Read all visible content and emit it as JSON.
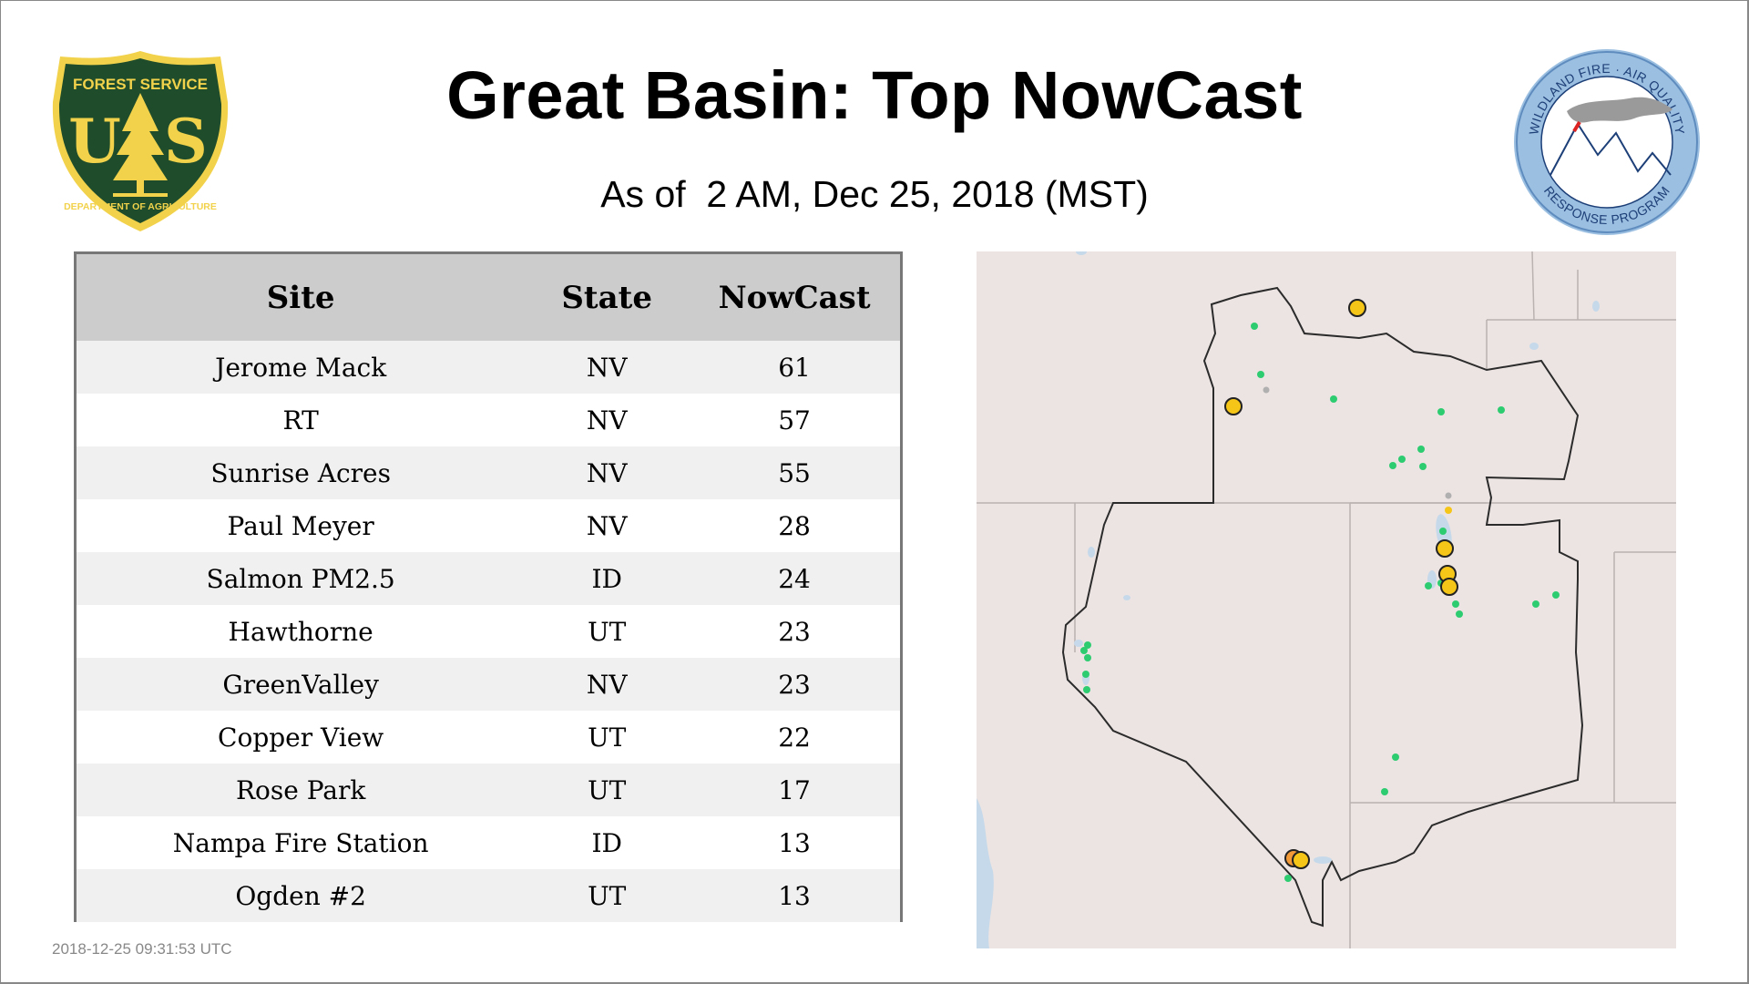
{
  "header": {
    "title": "Great Basin: Top NowCast",
    "subtitle": "As of  2 AM, Dec 25, 2018 (MST)"
  },
  "logos": {
    "forest_service": {
      "top_text": "FOREST SERVICE",
      "letters": "U S",
      "bottom_text": "DEPARTMENT OF AGRICULTURE",
      "icon": "usfs-shield-icon",
      "colors": {
        "shield": "#1f4d2b",
        "gold": "#f2d24b"
      }
    },
    "wildland_fire": {
      "top_text": "WILDLAND FIRE · AIR QUALITY",
      "bottom_text": "RESPONSE PROGRAM",
      "icon": "mountain-smoke-icon",
      "colors": {
        "ring": "#9bbfe0",
        "text": "#1d3f78"
      }
    }
  },
  "table": {
    "headers": [
      "Site",
      "State",
      "NowCast"
    ],
    "rows": [
      {
        "site": "Jerome Mack",
        "state": "NV",
        "nowcast": "61"
      },
      {
        "site": "RT",
        "state": "NV",
        "nowcast": "57"
      },
      {
        "site": "Sunrise Acres",
        "state": "NV",
        "nowcast": "55"
      },
      {
        "site": "Paul Meyer",
        "state": "NV",
        "nowcast": "28"
      },
      {
        "site": "Salmon PM2.5",
        "state": "ID",
        "nowcast": "24"
      },
      {
        "site": "Hawthorne",
        "state": "UT",
        "nowcast": "23"
      },
      {
        "site": "GreenValley",
        "state": "NV",
        "nowcast": "23"
      },
      {
        "site": "Copper View",
        "state": "UT",
        "nowcast": "22"
      },
      {
        "site": "Rose Park",
        "state": "UT",
        "nowcast": "17"
      },
      {
        "site": "Nampa Fire Station",
        "state": "ID",
        "nowcast": "13"
      },
      {
        "site": "Ogden #2",
        "state": "UT",
        "nowcast": "13"
      }
    ]
  },
  "map": {
    "colors": {
      "good": "#2ecc71",
      "moderate": "#f5c518",
      "no_data": "#b0b0b0",
      "land": "#ece4e2",
      "water": "#c6d9ea"
    }
  },
  "footer": {
    "timestamp": "2018-12-25 09:31:53 UTC"
  }
}
